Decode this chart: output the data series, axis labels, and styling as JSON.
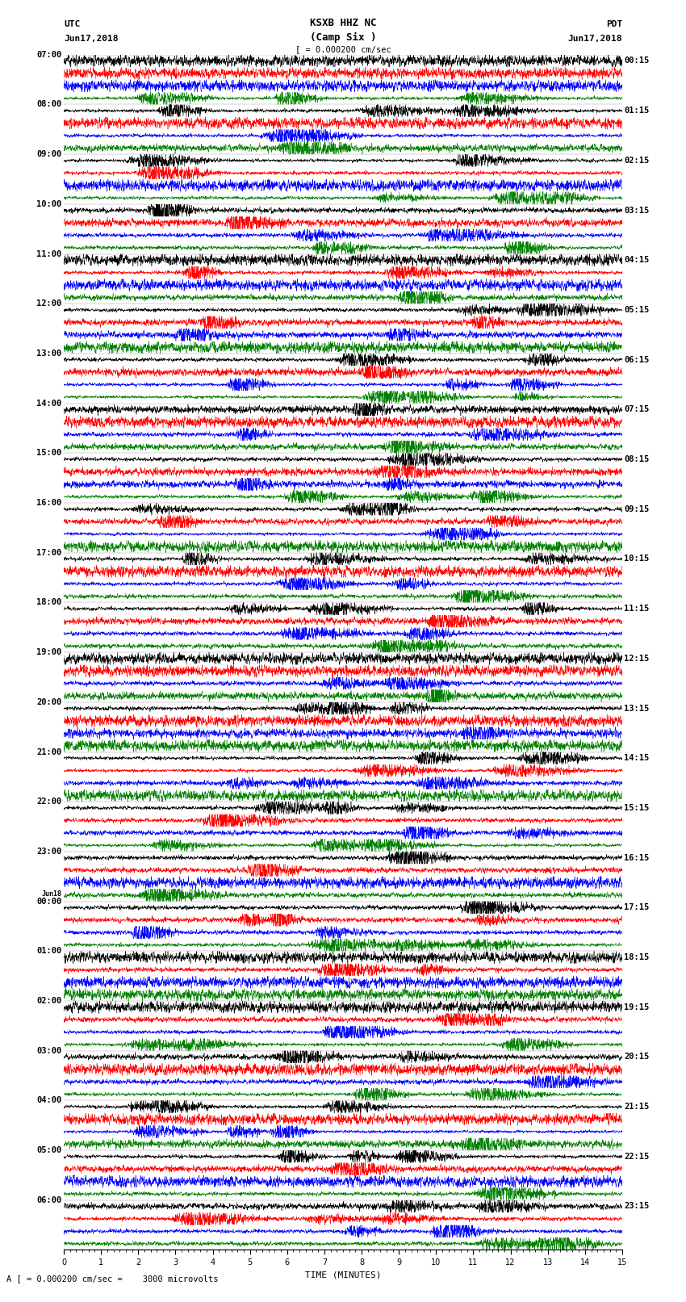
{
  "title_line1": "KSXB HHZ NC",
  "title_line2": "(Camp Six )",
  "utc_label": "UTC",
  "pdt_label": "PDT",
  "date_left": "Jun17,2018",
  "date_right": "Jun17,2018",
  "scale_text": "A [ = 0.000200 cm/sec =    3000 microvolts",
  "xlabel": "TIME (MINUTES)",
  "scale_indicator": "[ = 0.000200 cm/sec",
  "time_minutes": 15,
  "traces_per_hour": 4,
  "colors": [
    "black",
    "red",
    "blue",
    "green"
  ],
  "left_times_utc": [
    "07:00",
    "08:00",
    "09:00",
    "10:00",
    "11:00",
    "12:00",
    "13:00",
    "14:00",
    "15:00",
    "16:00",
    "17:00",
    "18:00",
    "19:00",
    "20:00",
    "21:00",
    "22:00",
    "23:00",
    "00:00",
    "01:00",
    "02:00",
    "03:00",
    "04:00",
    "05:00",
    "06:00"
  ],
  "jun18_index": 17,
  "right_times_pdt": [
    "00:15",
    "01:15",
    "02:15",
    "03:15",
    "04:15",
    "05:15",
    "06:15",
    "07:15",
    "08:15",
    "09:15",
    "10:15",
    "11:15",
    "12:15",
    "13:15",
    "14:15",
    "15:15",
    "16:15",
    "17:15",
    "18:15",
    "19:15",
    "20:15",
    "21:15",
    "22:15",
    "23:15"
  ],
  "background_color": "white",
  "fig_width": 8.5,
  "fig_height": 16.13,
  "dpi": 100,
  "n_hours": 24,
  "time_pts": 3000
}
